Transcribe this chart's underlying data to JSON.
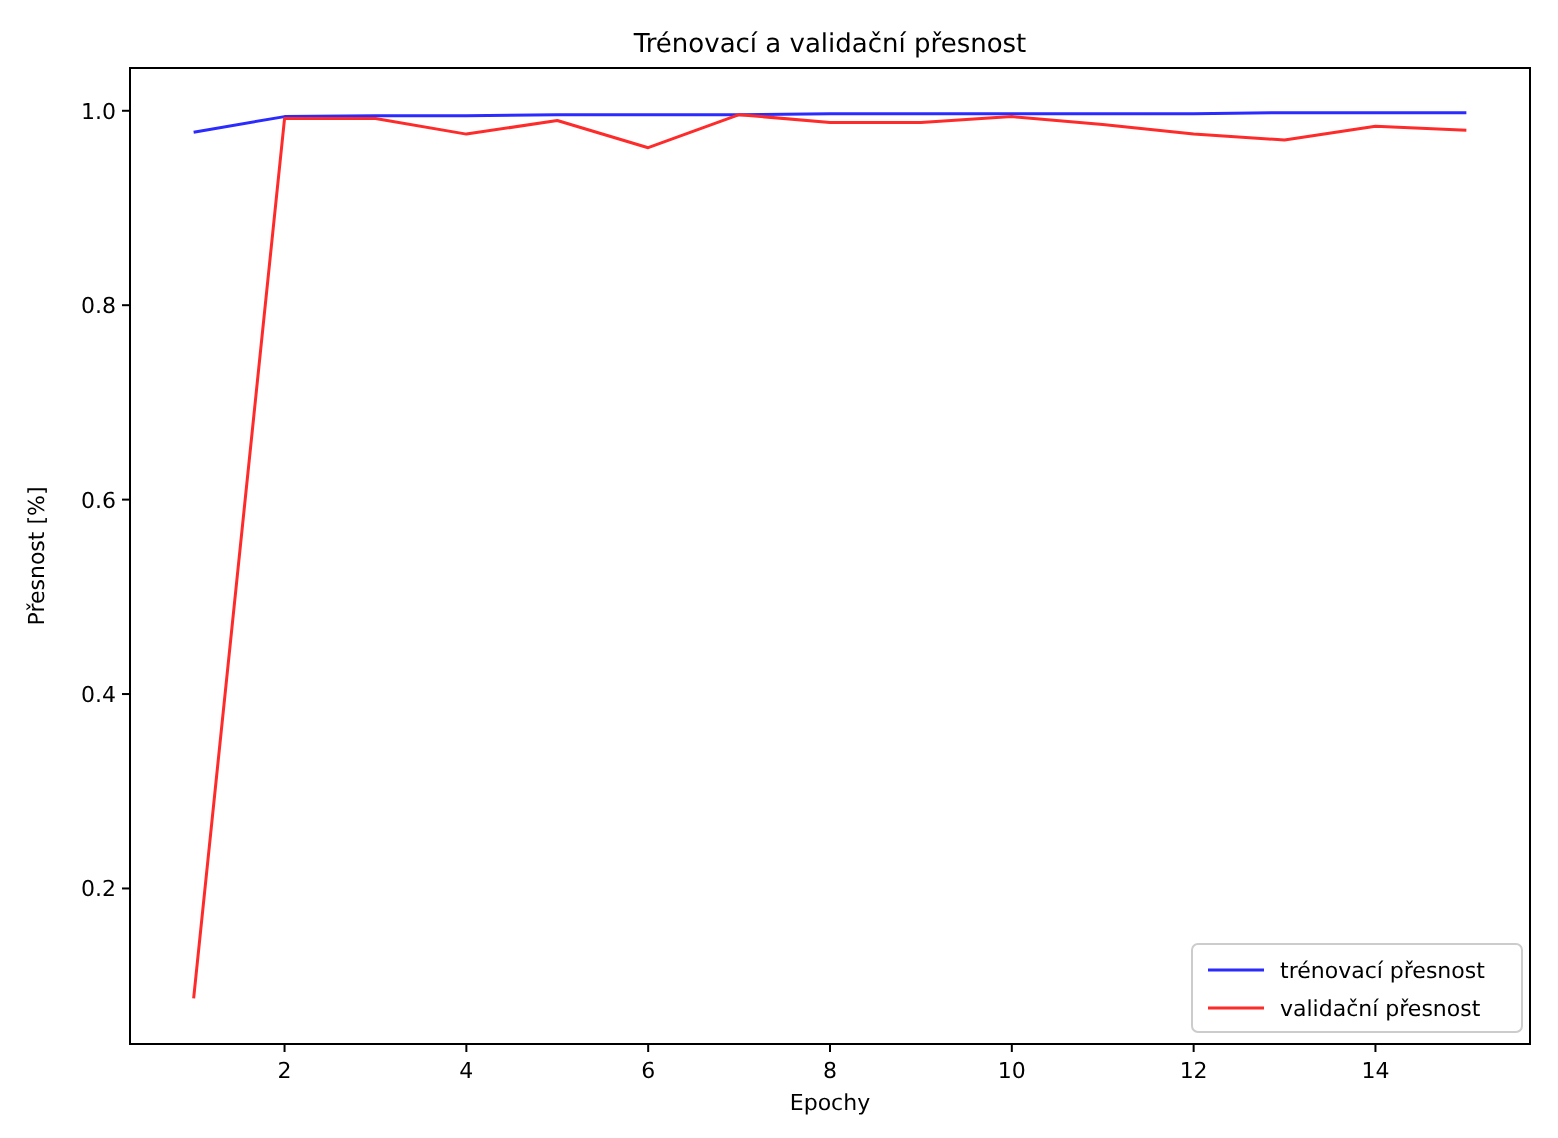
{
  "chart_data": {
    "type": "line",
    "title": "Trénovací a validační přesnost",
    "xlabel": "Epochy",
    "ylabel": "Přesnost [%]",
    "x": [
      1,
      2,
      3,
      4,
      5,
      6,
      7,
      8,
      9,
      10,
      11,
      12,
      13,
      14,
      15
    ],
    "series": [
      {
        "name": "trénovací přesnost",
        "color": "#2b2bff",
        "values": [
          0.978,
          0.994,
          0.995,
          0.995,
          0.996,
          0.996,
          0.996,
          0.997,
          0.997,
          0.997,
          0.997,
          0.997,
          0.998,
          0.998,
          0.998
        ]
      },
      {
        "name": "validační přesnost",
        "color": "#ff2b2b",
        "values": [
          0.087,
          0.992,
          0.992,
          0.976,
          0.99,
          0.962,
          0.996,
          0.988,
          0.988,
          0.994,
          0.986,
          0.976,
          0.97,
          0.984,
          0.98
        ]
      }
    ],
    "xlim": [
      0.3,
      15.7
    ],
    "xticks": [
      2,
      4,
      6,
      8,
      10,
      12,
      14
    ],
    "ylim": [
      0.04,
      1.044
    ],
    "yticks": [
      0.2,
      0.4,
      0.6,
      0.8,
      {
        "value": 1,
        "label": "1.0"
      }
    ],
    "legend": "bottom right",
    "line_style": "solid",
    "marker": "none",
    "grid": false
  }
}
